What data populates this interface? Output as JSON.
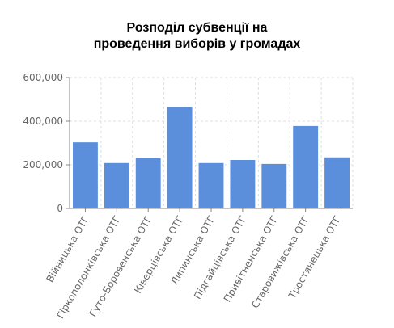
{
  "chart_data": {
    "type": "bar",
    "title_lines": [
      "Розподіл субвенції на",
      "проведення виборів у громадах"
    ],
    "categories": [
      "Війницька ОТГ",
      "Гіркополонківська ОТГ",
      "Гуто-Боровенська ОТГ",
      "Ківерцівська ОТГ",
      "Липинська ОТГ",
      "Підгайцівська ОТГ",
      "Привітненська ОТГ",
      "Старовижівська ОТГ",
      "Тростянецька ОТГ"
    ],
    "values": [
      305000,
      210000,
      232000,
      467000,
      210000,
      224000,
      206000,
      380000,
      236000
    ],
    "ylim": [
      0,
      600000
    ],
    "yticks": [
      0,
      200000,
      400000,
      600000
    ],
    "ytick_labels": [
      "0",
      "200,000",
      "400,000",
      "600,000"
    ],
    "xlabel": "",
    "ylabel": "",
    "grid": true,
    "legend": "none",
    "colors": {
      "bar": "#5b8fdc",
      "bar_edge": "#ffffff",
      "grid": "#dddddd",
      "axis": "#888888",
      "tick_label": "#666666"
    }
  }
}
